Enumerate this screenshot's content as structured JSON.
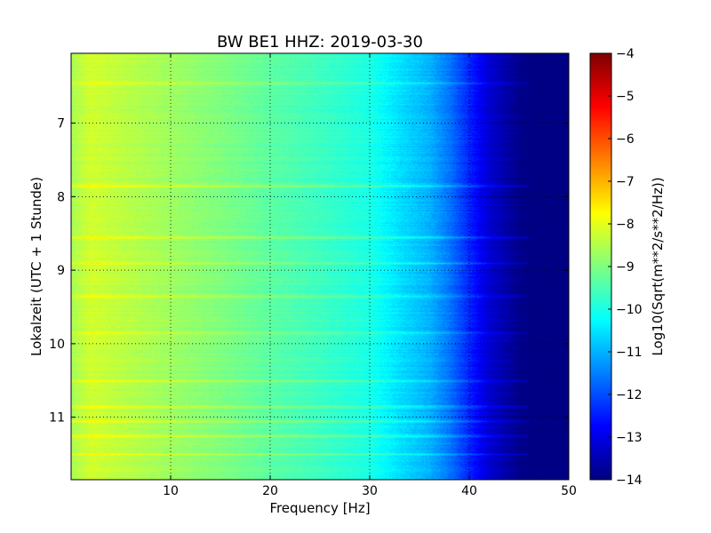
{
  "chart_data": {
    "type": "heatmap",
    "title": "BW BE1 HHZ: 2019-03-30",
    "xlabel": "Frequency [Hz]",
    "ylabel": "Lokalzeit (UTC + 1 Stunde)",
    "colorbar_label": "Log10(Sqrt(m**2/s**2/Hz))",
    "xlim": [
      0,
      50
    ],
    "ylim": [
      6.05,
      11.85
    ],
    "y_inverted": true,
    "x_ticks": [
      10,
      20,
      30,
      40,
      50
    ],
    "y_ticks": [
      7,
      8,
      9,
      10,
      11
    ],
    "colorbar_range": [
      -14,
      -4
    ],
    "colorbar_ticks": [
      -14,
      -13,
      -12,
      -11,
      -10,
      -9,
      -8,
      -7,
      -6,
      -5,
      -4
    ],
    "colormap": "jet",
    "grid": true,
    "grid_style": "dotted",
    "approx_profile_by_frequency": {
      "frequency_hz": [
        0,
        2,
        5,
        10,
        15,
        20,
        25,
        30,
        33,
        36,
        38,
        40,
        42,
        45,
        46,
        50
      ],
      "value": [
        -8.6,
        -8.2,
        -8.4,
        -8.7,
        -9.0,
        -9.35,
        -9.65,
        -10.0,
        -10.55,
        -11.0,
        -11.6,
        -12.4,
        -13.2,
        -13.9,
        -14.0,
        -14.0
      ]
    },
    "approx_high_energy_rows_local_time": [
      6.45,
      7.85,
      8.55,
      8.9,
      9.35,
      9.85,
      10.5,
      10.85,
      11.05,
      11.25,
      11.5
    ]
  }
}
